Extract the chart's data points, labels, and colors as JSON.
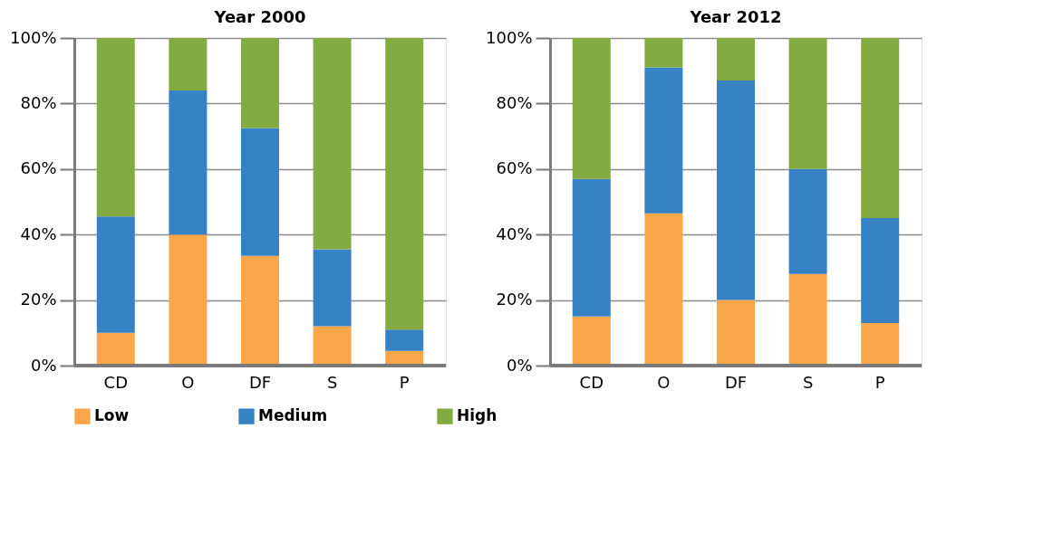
{
  "chart_data": [
    {
      "type": "bar",
      "title": "Year 2000",
      "categories": [
        "CD",
        "O",
        "DF",
        "S",
        "P"
      ],
      "stacked": true,
      "legend": "bottom",
      "grid": "y",
      "ylim": [
        0,
        100
      ],
      "yticks": [
        {
          "value": 0,
          "label": "0%"
        },
        {
          "value": 20,
          "label": "20%"
        },
        {
          "value": 40,
          "label": "40%"
        },
        {
          "value": 60,
          "label": "60%"
        },
        {
          "value": 80,
          "label": "80%"
        },
        {
          "value": 100,
          "label": "100%"
        }
      ],
      "series": [
        {
          "name": "Low",
          "color": "#f9a54a",
          "values": [
            10,
            40,
            33.5,
            12,
            4.5
          ]
        },
        {
          "name": "Medium",
          "color": "#3682c5",
          "values": [
            35.5,
            44,
            39,
            23.5,
            6.5
          ]
        },
        {
          "name": "High",
          "color": "#84ab41",
          "values": [
            54.5,
            16,
            27.5,
            64.5,
            89
          ]
        }
      ]
    },
    {
      "type": "bar",
      "title": "Year 2012",
      "categories": [
        "CD",
        "O",
        "DF",
        "S",
        "P"
      ],
      "stacked": true,
      "legend": "bottom",
      "grid": "y",
      "ylim": [
        0,
        100
      ],
      "yticks": [
        {
          "value": 0,
          "label": "0%"
        },
        {
          "value": 20,
          "label": "20%"
        },
        {
          "value": 40,
          "label": "40%"
        },
        {
          "value": 60,
          "label": "60%"
        },
        {
          "value": 80,
          "label": "80%"
        },
        {
          "value": 100,
          "label": "100%"
        }
      ],
      "series": [
        {
          "name": "Low",
          "color": "#f9a54a",
          "values": [
            15,
            46.5,
            20,
            28,
            13
          ]
        },
        {
          "name": "Medium",
          "color": "#3682c5",
          "values": [
            42,
            44.5,
            67,
            32,
            32
          ]
        },
        {
          "name": "High",
          "color": "#84ab41",
          "values": [
            43,
            9,
            13,
            40,
            55
          ]
        }
      ]
    }
  ]
}
